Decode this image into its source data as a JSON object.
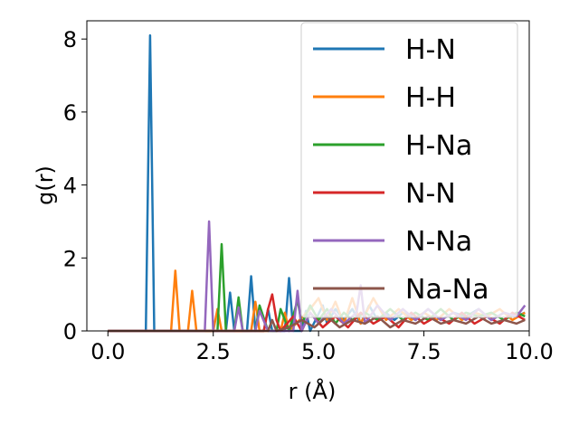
{
  "chart_data": {
    "type": "line",
    "title": "",
    "xlabel": "r (Å)",
    "ylabel": "g(r)",
    "xlim": [
      -0.5,
      10.0
    ],
    "ylim": [
      0,
      8.5
    ],
    "xticks": [
      0.0,
      2.5,
      5.0,
      7.5,
      10.0
    ],
    "xtick_labels": [
      "0.0",
      "2.5",
      "5.0",
      "7.5",
      "10.0"
    ],
    "yticks": [
      0,
      2,
      4,
      6,
      8
    ],
    "ytick_labels": [
      "0",
      "2",
      "4",
      "6",
      "8"
    ],
    "grid": false,
    "legend_position": "top-right",
    "series": [
      {
        "name": "H-N",
        "color": "#1f77b4",
        "x": [
          0.0,
          0.9,
          1.0,
          1.1,
          2.8,
          2.9,
          3.0,
          3.3,
          3.4,
          3.5,
          3.7,
          3.8,
          3.9,
          4.2,
          4.3,
          4.4,
          4.6,
          4.7,
          4.8,
          5.1,
          5.2,
          5.4,
          5.6,
          5.8,
          6.0,
          6.2,
          6.4,
          6.6,
          6.8,
          7.0,
          7.3,
          7.6,
          7.9,
          8.2,
          8.5,
          8.8,
          9.1,
          9.4,
          9.7,
          9.9
        ],
        "y": [
          0,
          0,
          8.1,
          0,
          0,
          1.05,
          0,
          0,
          1.5,
          0,
          0,
          0.6,
          0,
          0,
          1.45,
          0,
          0,
          0.55,
          0,
          0.7,
          0.2,
          0.6,
          0.3,
          0.6,
          0.2,
          0.7,
          0.3,
          0.5,
          0.3,
          0.5,
          0.3,
          0.6,
          0.3,
          0.5,
          0.4,
          0.6,
          0.3,
          0.5,
          0.4,
          0.5
        ]
      },
      {
        "name": "H-H",
        "color": "#ff7f0e",
        "x": [
          0.0,
          1.5,
          1.6,
          1.7,
          1.9,
          2.0,
          2.1,
          2.5,
          2.6,
          2.7,
          3.4,
          3.5,
          3.6,
          4.1,
          4.2,
          4.3,
          4.8,
          5.0,
          5.2,
          5.4,
          5.6,
          5.8,
          6.0,
          6.3,
          6.6,
          6.9,
          7.2,
          7.5,
          7.8,
          8.1,
          8.4,
          8.7,
          9.0,
          9.3,
          9.6,
          9.9
        ],
        "y": [
          0,
          0,
          1.65,
          0,
          0,
          1.1,
          0,
          0,
          0.6,
          0,
          0,
          0.8,
          0,
          0,
          0.5,
          0,
          0.6,
          0.9,
          0.3,
          0.8,
          0.2,
          0.9,
          0.2,
          0.9,
          0.3,
          0.6,
          0.3,
          0.5,
          0.3,
          0.6,
          0.3,
          0.5,
          0.4,
          0.6,
          0.3,
          0.5
        ]
      },
      {
        "name": "H-Na",
        "color": "#2ca02c",
        "x": [
          0.0,
          2.6,
          2.7,
          2.8,
          3.0,
          3.1,
          3.2,
          3.5,
          3.6,
          3.8,
          4.0,
          4.1,
          4.3,
          4.5,
          4.6,
          4.8,
          5.0,
          5.2,
          5.4,
          5.6,
          5.8,
          6.1,
          6.4,
          6.7,
          7.0,
          7.3,
          7.6,
          7.9,
          8.2,
          8.5,
          8.8,
          9.1,
          9.4,
          9.7,
          9.9
        ],
        "y": [
          0,
          0,
          2.38,
          0,
          0,
          0.92,
          0,
          0,
          0.7,
          0,
          0,
          0.6,
          0,
          0.85,
          0.2,
          0.7,
          0.3,
          0.6,
          0.2,
          0.5,
          0.3,
          0.5,
          0.3,
          0.6,
          0.3,
          0.5,
          0.3,
          0.6,
          0.3,
          0.5,
          0.4,
          0.5,
          0.3,
          0.5,
          0.4
        ]
      },
      {
        "name": "N-N",
        "color": "#d62728",
        "x": [
          0.0,
          3.7,
          3.8,
          3.9,
          4.0,
          4.1,
          4.4,
          4.6,
          4.8,
          5.1,
          5.4,
          5.7,
          6.0,
          6.3,
          6.6,
          6.9,
          7.2,
          7.5,
          7.8,
          8.1,
          8.4,
          8.7,
          9.0,
          9.3,
          9.6,
          9.9
        ],
        "y": [
          0,
          0,
          0.6,
          1.0,
          0.3,
          0,
          0.4,
          0,
          0.5,
          0.1,
          0.4,
          0.1,
          0.5,
          0.2,
          0.4,
          0.1,
          0.5,
          0.2,
          0.4,
          0.2,
          0.5,
          0.2,
          0.4,
          0.2,
          0.5,
          0.3
        ]
      },
      {
        "name": "N-Na",
        "color": "#9467bd",
        "x": [
          0.0,
          2.3,
          2.4,
          2.5,
          3.0,
          3.1,
          3.2,
          3.5,
          3.6,
          3.8,
          4.4,
          4.5,
          4.6,
          4.8,
          5.0,
          5.3,
          5.6,
          5.9,
          6.0,
          6.1,
          6.4,
          6.7,
          7.0,
          7.3,
          7.6,
          7.9,
          8.2,
          8.5,
          8.8,
          9.1,
          9.4,
          9.7,
          9.9
        ],
        "y": [
          0,
          0,
          3.0,
          0,
          0,
          0.65,
          0,
          0,
          0.55,
          0,
          0,
          1.1,
          0,
          0.5,
          0.2,
          0.6,
          0.2,
          0.5,
          1.25,
          0.2,
          0.7,
          0.3,
          0.6,
          0.3,
          0.6,
          0.3,
          0.5,
          0.3,
          0.6,
          0.3,
          0.5,
          0.4,
          0.7
        ]
      },
      {
        "name": "Na-Na",
        "color": "#8c564b",
        "x": [
          0.0,
          3.8,
          3.9,
          4.0,
          4.3,
          4.6,
          4.9,
          5.2,
          5.5,
          5.8,
          6.1,
          6.4,
          6.7,
          7.0,
          7.3,
          7.6,
          7.9,
          8.2,
          8.5,
          8.8,
          9.1,
          9.4,
          9.7,
          9.9
        ],
        "y": [
          0,
          0,
          0.3,
          0,
          0.1,
          0.3,
          0.1,
          0.4,
          0.1,
          0.3,
          0.2,
          0.4,
          0.1,
          0.3,
          0.2,
          0.4,
          0.2,
          0.3,
          0.2,
          0.4,
          0.2,
          0.3,
          0.2,
          0.3
        ]
      }
    ]
  }
}
